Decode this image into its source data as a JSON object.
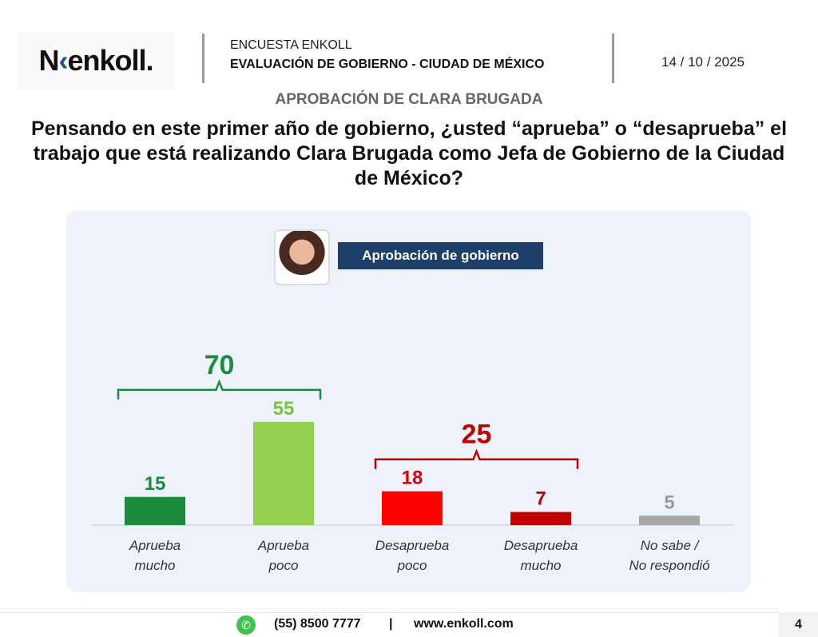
{
  "header": {
    "logo_text": "enkoll.",
    "survey": "ENCUESTA ENKOLL",
    "title": "EVALUACIÓN DE GOBIERNO - CIUDAD DE MÉXICO",
    "date": "14 / 10 / 2025"
  },
  "subtitle": "APROBACIÓN DE CLARA BRUGADA",
  "question": "Pensando en este primer año de gobierno, ¿usted “aprueba” o “desaprueba” el trabajo que está realizando Clara Brugada como Jefa de Gobierno de la Ciudad de México?",
  "watermark": "enkoll.",
  "chart_data": {
    "type": "bar",
    "title": "Aprobación de gobierno",
    "categories": [
      "Aprueba mucho",
      "Aprueba poco",
      "Desaprueba poco",
      "Desaprueba mucho",
      "No sabe / No respondió"
    ],
    "category_lines": [
      [
        "Aprueba",
        "mucho"
      ],
      [
        "Aprueba",
        "poco"
      ],
      [
        "Desaprueba",
        "poco"
      ],
      [
        "Desaprueba",
        "mucho"
      ],
      [
        "No sabe /",
        "No respondió"
      ]
    ],
    "values": [
      15,
      55,
      18,
      7,
      5
    ],
    "colors": [
      "#1b8c3c",
      "#92d050",
      "#ff0000",
      "#c00000",
      "#a6a6a6"
    ],
    "label_colors": [
      "#1b8c3c",
      "#7cc242",
      "#e00000",
      "#c00000",
      "#9a9a9a"
    ],
    "groups": [
      {
        "label": "70",
        "from": 0,
        "to": 1,
        "color": "#1b8c3c"
      },
      {
        "label": "25",
        "from": 2,
        "to": 3,
        "color": "#c00000"
      }
    ],
    "ylim": [
      0,
      70
    ]
  },
  "footer": {
    "phone": "(55) 8500 7777",
    "separator": "|",
    "website": "www.enkoll.com",
    "page": "4"
  }
}
